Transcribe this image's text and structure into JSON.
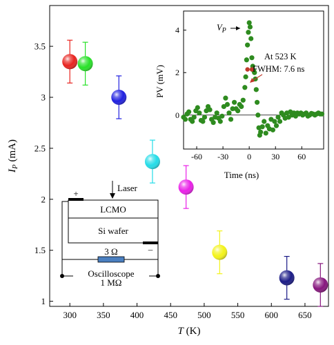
{
  "chart_data": [
    {
      "type": "scatter",
      "title": "",
      "xlabel": "T (K)",
      "xlabel_parts": {
        "symbol": "T",
        "unit": " (K)"
      },
      "ylabel": "IP (mA)",
      "ylabel_parts": {
        "symbol": "I",
        "sub": "P",
        "unit": " (mA)"
      },
      "xlim": [
        270,
        685
      ],
      "ylim": [
        0.95,
        3.9
      ],
      "xticks": [
        300,
        350,
        400,
        450,
        500,
        550,
        600,
        650
      ],
      "yticks": [
        1,
        1.5,
        2,
        2.5,
        3,
        3.5
      ],
      "ytick_labels": [
        "1",
        "1.5",
        "2",
        "2.5",
        "3",
        "3.5"
      ],
      "grid": false,
      "points": [
        {
          "x": 300,
          "y": 3.35,
          "err": 0.21,
          "color": "#e8231f"
        },
        {
          "x": 323,
          "y": 3.33,
          "err": 0.21,
          "color": "#27e127"
        },
        {
          "x": 373,
          "y": 3.0,
          "err": 0.21,
          "color": "#1f1fe0"
        },
        {
          "x": 423,
          "y": 2.37,
          "err": 0.21,
          "color": "#23dce8"
        },
        {
          "x": 473,
          "y": 2.12,
          "err": 0.21,
          "color": "#ea1fe8"
        },
        {
          "x": 523,
          "y": 1.48,
          "err": 0.21,
          "color": "#f3f318"
        },
        {
          "x": 623,
          "y": 1.23,
          "err": 0.21,
          "color": "#1a1a86"
        },
        {
          "x": 673,
          "y": 1.16,
          "err": 0.21,
          "color": "#86157d"
        }
      ]
    },
    {
      "type": "scatter",
      "title": "",
      "xlabel": "Time (ns)",
      "ylabel": "PV (mV)",
      "xlim": [
        -75,
        85
      ],
      "ylim": [
        -1.6,
        4.9
      ],
      "xticks": [
        -60,
        -30,
        0,
        30,
        60
      ],
      "yticks": [
        0,
        2,
        4
      ],
      "grid": false,
      "baseline": 0,
      "color": "#2e8b1f",
      "x": [
        -75,
        -73,
        -71,
        -69,
        -67,
        -65,
        -63,
        -61,
        -59,
        -57,
        -55,
        -53,
        -51,
        -49,
        -47,
        -45,
        -43,
        -41,
        -39,
        -37,
        -35,
        -33,
        -31,
        -29,
        -27,
        -25,
        -23,
        -21,
        -19,
        -17,
        -15,
        -13,
        -11,
        -9,
        -7,
        -5,
        -4,
        -3,
        -2,
        -1,
        0,
        1,
        2,
        3,
        4,
        5,
        6,
        7,
        8,
        9,
        10,
        11,
        12,
        13,
        15,
        17,
        19,
        21,
        23,
        25,
        27,
        29,
        31,
        33,
        35,
        37,
        39,
        41,
        43,
        45,
        47,
        49,
        51,
        53,
        55,
        57,
        59,
        61,
        63,
        65,
        67,
        69,
        71,
        73,
        75,
        77,
        79,
        81,
        83
      ],
      "y": [
        -0.1,
        -0.2,
        0.05,
        0.15,
        -0.2,
        -0.3,
        -0.1,
        0.2,
        0.35,
        0.1,
        -0.25,
        -0.3,
        -0.1,
        0.2,
        0.4,
        0.25,
        -0.2,
        -0.35,
        -0.1,
        0.1,
        -0.15,
        -0.3,
        -0.05,
        0.4,
        0.8,
        0.5,
        0.1,
        -0.2,
        0.3,
        0.6,
        0.3,
        0.2,
        0.5,
        0.4,
        0.7,
        1.3,
        1.8,
        2.6,
        3.3,
        3.9,
        4.35,
        4.15,
        3.6,
        2.7,
        2.3,
        2.1,
        2.0,
        1.7,
        1.2,
        0.6,
        0.0,
        -0.6,
        -0.95,
        -0.8,
        -0.55,
        -0.3,
        -0.85,
        -0.5,
        -0.65,
        -0.2,
        -0.7,
        -0.3,
        -0.5,
        -0.1,
        -0.3,
        0.1,
        0.0,
        -0.15,
        0.1,
        -0.1,
        0.15,
        0.0,
        0.1,
        -0.05,
        0.1,
        0.05,
        0.1,
        0.0,
        0.05,
        0.1,
        -0.05,
        0.0,
        0.08,
        0.05,
        0.0,
        0.05,
        0.1,
        0.05,
        0.05
      ],
      "annotations": {
        "peak_symbol": "V",
        "peak_sub": "P",
        "line1": "At 523 K",
        "line2": "FWHM: 7.6 ns"
      },
      "fwhm_marks": [
        {
          "x": -2,
          "y": 2.15
        },
        {
          "x": 3,
          "y": 2.15
        }
      ]
    }
  ],
  "schematic": {
    "laser": "Laser",
    "layer_top": "LCMO",
    "layer_bottom": "Si wafer",
    "resistor": "3 Ω",
    "scope_line1": "Oscilloscope",
    "scope_line2": "1 MΩ",
    "plus": "+",
    "minus": "–",
    "resistor_color": "#4a7fc0"
  }
}
